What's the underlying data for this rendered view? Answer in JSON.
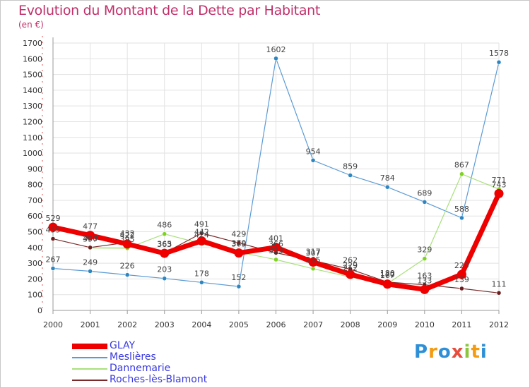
{
  "header": {
    "title": "Evolution du Montant de la Dette par Habitant",
    "unit": "(en €)"
  },
  "brand": {
    "logo_letters": [
      "P",
      "r",
      "o",
      "x",
      "i",
      "t",
      "i"
    ],
    "logo_colors": [
      "#2e8fd6",
      "#f39c12",
      "#2e8fd6",
      "#e74c3c",
      "#8cc63f",
      "#f39c12",
      "#2e8fd6"
    ]
  },
  "chart_data": {
    "type": "line",
    "x": [
      2000,
      2001,
      2002,
      2003,
      2004,
      2005,
      2006,
      2007,
      2008,
      2009,
      2010,
      2011,
      2012
    ],
    "ylim": [
      0,
      1700
    ],
    "yticks": [
      0,
      100,
      200,
      300,
      400,
      500,
      600,
      700,
      800,
      900,
      1000,
      1100,
      1200,
      1300,
      1400,
      1500,
      1600,
      1700
    ],
    "grid": true,
    "legend_position": "bottom-left",
    "series": [
      {
        "name": "Meslières",
        "color": "#5b9bd5",
        "marker": "#2e86c1",
        "width": 1.2,
        "values": [
          267,
          249,
          226,
          203,
          178,
          152,
          1602,
          954,
          859,
          784,
          689,
          588,
          1578
        ]
      },
      {
        "name": "Dannemarie",
        "color": "#a8e07a",
        "marker": "#7ed321",
        "width": 1.2,
        "values": [
          null,
          397,
          395,
          486,
          424,
          370,
          323,
          265,
          212,
          170,
          329,
          867,
          771
        ]
      },
      {
        "name": "Roches-lès-Blamont",
        "color": "#7a2a2a",
        "marker": "#6b1e1e",
        "width": 1.2,
        "values": [
          455,
          400,
          432,
          365,
          491,
          429,
          366,
          317,
          262,
          180,
          163,
          139,
          111
        ]
      },
      {
        "name": "GLAY",
        "color": "#ee0000",
        "marker": "#ee0000",
        "width": 7,
        "values": [
          529,
          477,
          422,
          363,
          442,
          365,
          401,
          307,
          229,
          167,
          133,
          229,
          743
        ]
      }
    ]
  }
}
